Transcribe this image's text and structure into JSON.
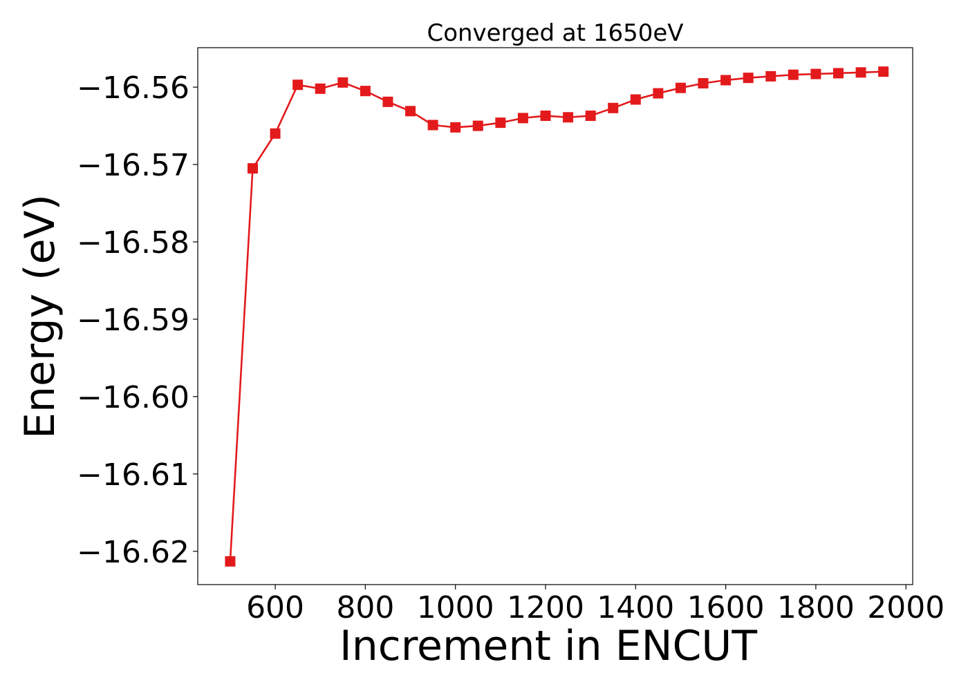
{
  "chart_data": {
    "type": "line",
    "title": "Converged at 1650eV",
    "xlabel": "Increment in ENCUT",
    "ylabel": "Energy (eV)",
    "xlim": [
      428,
      2015
    ],
    "ylim": [
      -16.6243,
      -16.5549
    ],
    "xticks": [
      600,
      800,
      1000,
      1200,
      1400,
      1600,
      1800,
      2000
    ],
    "yticks": [
      -16.56,
      -16.57,
      -16.58,
      -16.59,
      -16.6,
      -16.61,
      -16.62
    ],
    "ytick_labels": [
      "−16.56",
      "−16.57",
      "−16.58",
      "−16.59",
      "−16.60",
      "−16.61",
      "−16.62"
    ],
    "grid": false,
    "series": [
      {
        "color": "#e31a1c",
        "marker": "square",
        "x": [
          500,
          550,
          600,
          650,
          700,
          750,
          800,
          850,
          900,
          950,
          1000,
          1050,
          1100,
          1150,
          1200,
          1250,
          1300,
          1350,
          1400,
          1450,
          1500,
          1550,
          1600,
          1650,
          1700,
          1750,
          1800,
          1850,
          1900,
          1950
        ],
        "y": [
          -16.6213,
          -16.5705,
          -16.566,
          -16.5597,
          -16.5602,
          -16.5594,
          -16.5605,
          -16.5619,
          -16.5631,
          -16.5649,
          -16.5652,
          -16.565,
          -16.5646,
          -16.564,
          -16.5637,
          -16.5639,
          -16.5637,
          -16.5627,
          -16.5616,
          -16.5608,
          -16.5601,
          -16.5595,
          -16.5591,
          -16.5588,
          -16.5586,
          -16.5584,
          -16.5583,
          -16.5582,
          -16.5581,
          -16.558
        ]
      }
    ]
  }
}
